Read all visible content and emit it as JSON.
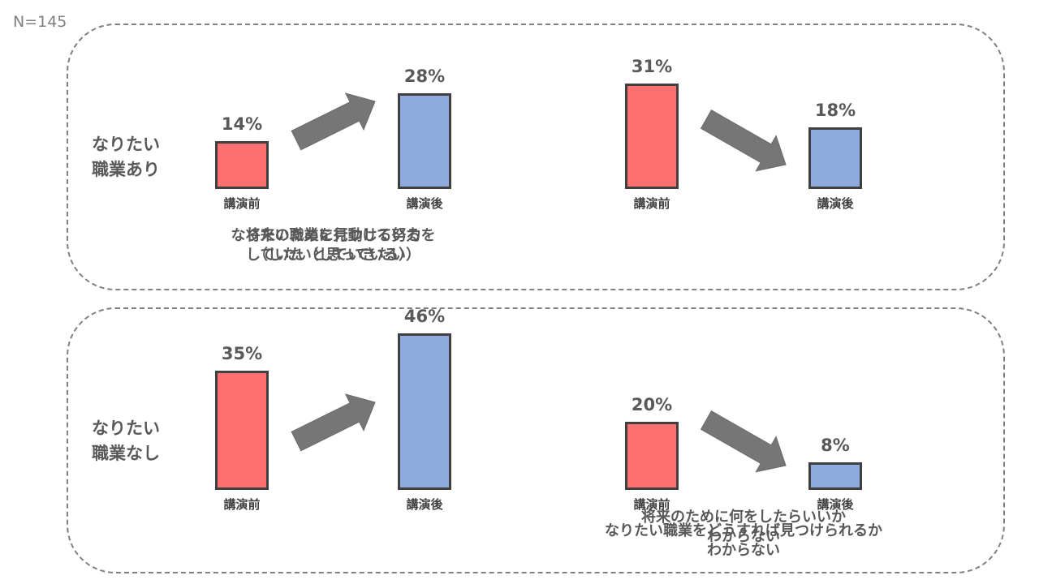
{
  "sample_size": "N=145",
  "chart_data": {
    "type": "bar",
    "categories": [
      "講演前",
      "講演後"
    ],
    "ylim": [
      0,
      50
    ],
    "rows": [
      {
        "label_lines": [
          "なりたい",
          "職業あり"
        ],
        "charts": [
          {
            "values": [
              14,
              28
            ],
            "labels": [
              "14%",
              "28%"
            ],
            "trend": "up",
            "caption_lines": [
              "将来のために行動している",
              "（したいと思っている）"
            ]
          },
          {
            "values": [
              31,
              18
            ],
            "labels": [
              "31%",
              "18%"
            ],
            "trend": "down",
            "caption_lines": [
              "将来のために何をしたらいいか",
              "わからない"
            ]
          }
        ]
      },
      {
        "label_lines": [
          "なりたい",
          "職業なし"
        ],
        "charts": [
          {
            "values": [
              35,
              46
            ],
            "labels": [
              "35%",
              "46%"
            ],
            "trend": "up",
            "caption_lines": [
              "なりたい職業を見つける努力を",
              "していた（していきたい）"
            ]
          },
          {
            "values": [
              20,
              8
            ],
            "labels": [
              "20%",
              "8%"
            ],
            "trend": "down",
            "caption_lines": [
              "なりたい職業をどうすれば見つけられるか",
              "わからない"
            ]
          }
        ]
      }
    ]
  },
  "colors": {
    "before": "#ff7070",
    "after": "#8faadc",
    "arrow": "#767676",
    "outline": "#404040"
  }
}
